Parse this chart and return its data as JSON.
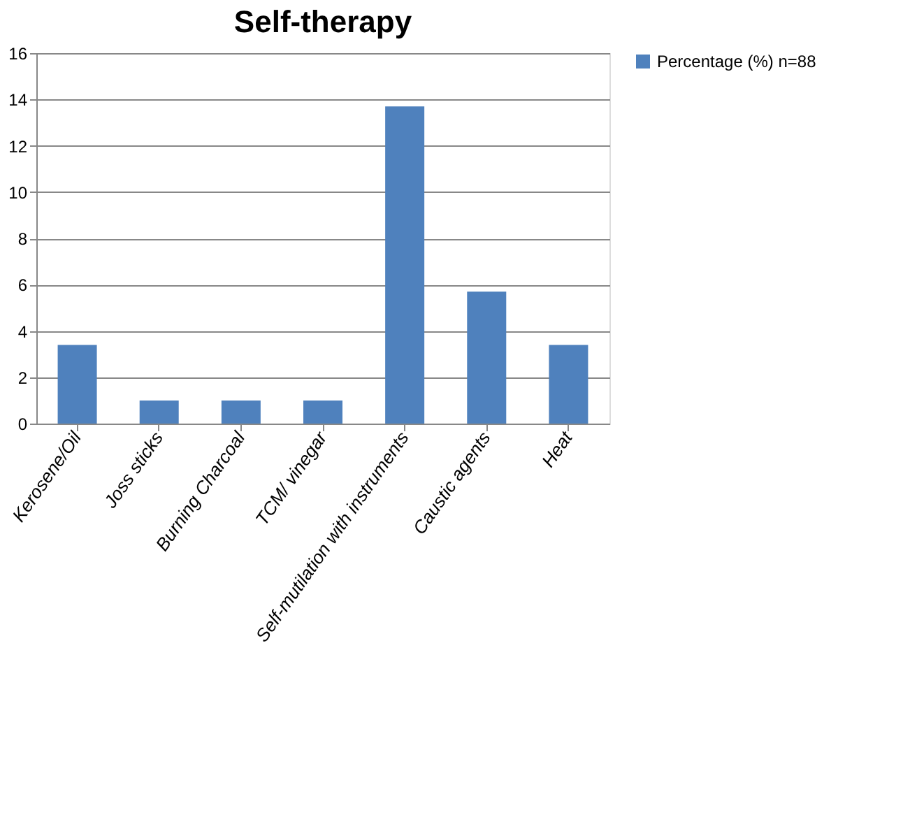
{
  "chart_data": {
    "type": "bar",
    "title": "Self-therapy",
    "categories": [
      "Kerosene/Oil",
      "Joss sticks",
      "Burning Charcoal",
      "TCM/ vinegar",
      "Self-mutilation with instruments",
      "Caustic agents",
      "Heat"
    ],
    "series": [
      {
        "name": "Percentage (%) n=88",
        "color": "#4f81bd",
        "values": [
          3.4,
          1,
          1,
          1,
          13.7,
          5.7,
          3.4
        ]
      }
    ],
    "ylim": [
      0,
      16
    ],
    "yticks": [
      0,
      2,
      4,
      6,
      8,
      10,
      12,
      14,
      16
    ],
    "grid": "y",
    "legend": "right"
  }
}
